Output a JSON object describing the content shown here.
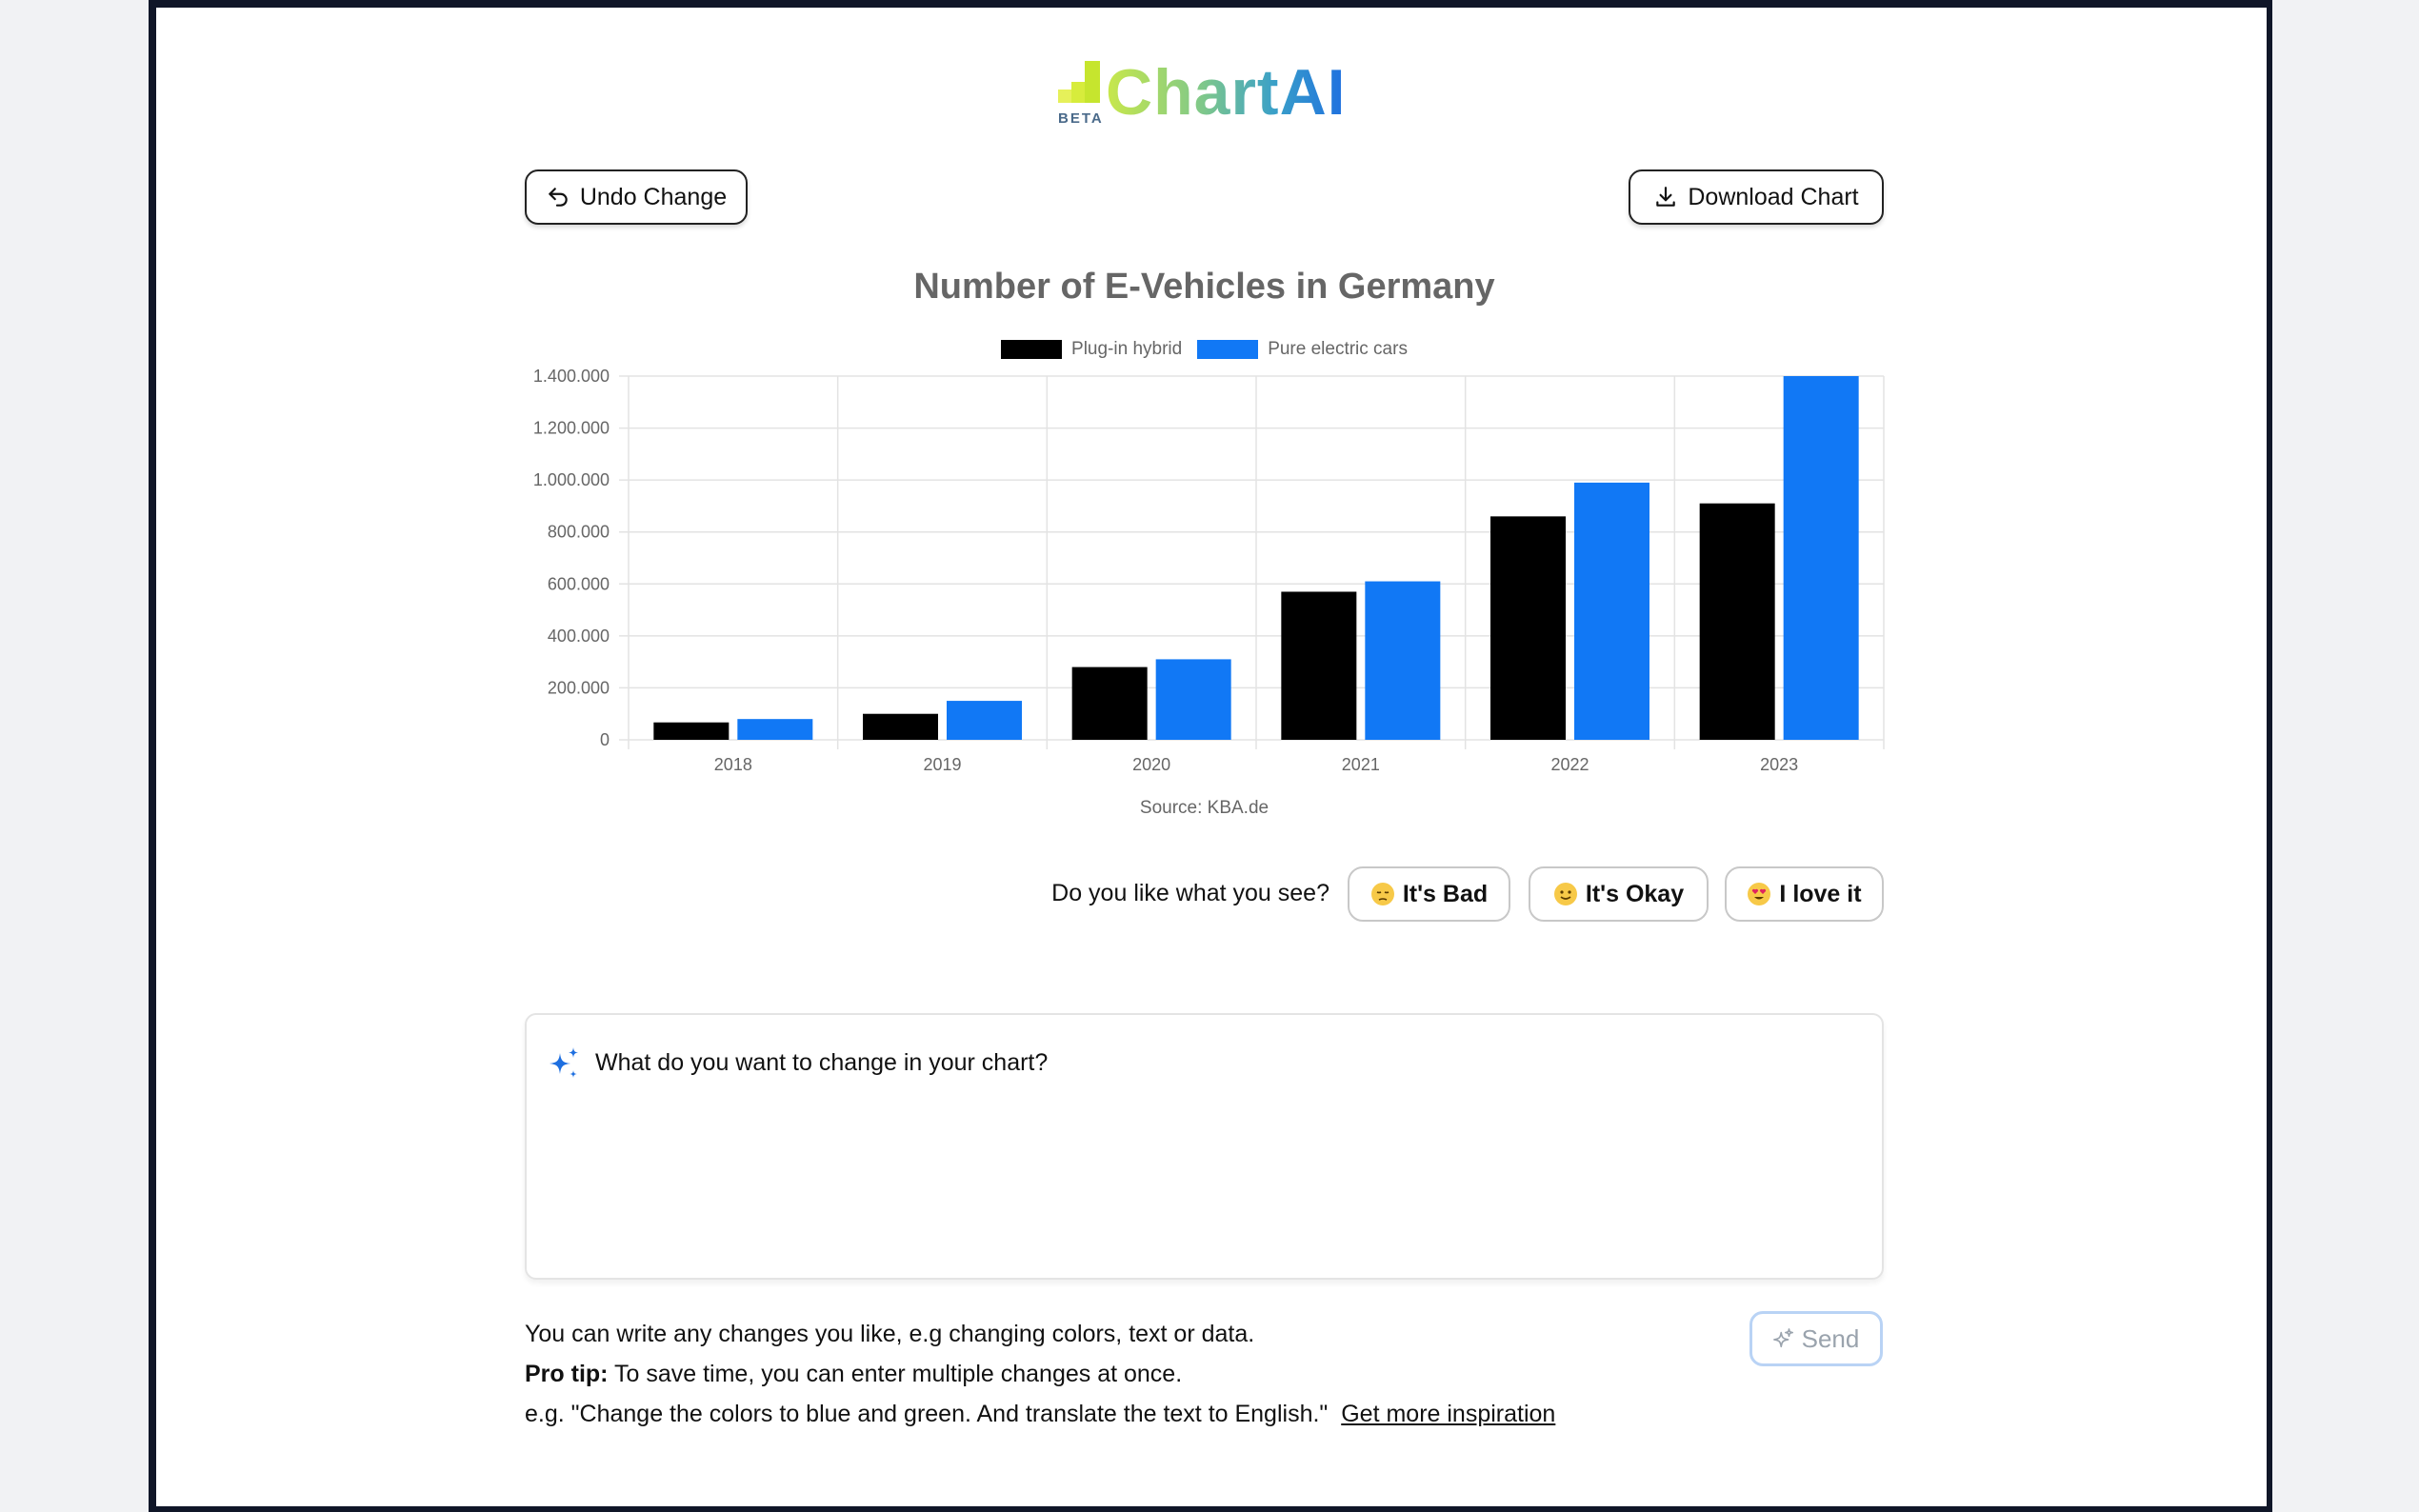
{
  "logo": {
    "badge": "BETA",
    "name": "ChartAI"
  },
  "toolbar": {
    "undo_label": "Undo Change",
    "download_label": "Download Chart"
  },
  "chart_data": {
    "type": "bar",
    "title": "Number of E-Vehicles in Germany",
    "categories": [
      "2018",
      "2019",
      "2020",
      "2021",
      "2022",
      "2023"
    ],
    "series": [
      {
        "name": "Plug-in hybrid",
        "color": "#000000",
        "values": [
          67000,
          100000,
          280000,
          570000,
          860000,
          910000
        ]
      },
      {
        "name": "Pure electric cars",
        "color": "#1178f5",
        "values": [
          80000,
          150000,
          310000,
          610000,
          990000,
          1400000
        ]
      }
    ],
    "ylim": [
      0,
      1400000
    ],
    "yticks": [
      "0",
      "200.000",
      "400.000",
      "600.000",
      "800.000",
      "1.000.000",
      "1.200.000",
      "1.400.000"
    ],
    "ytick_values": [
      0,
      200000,
      400000,
      600000,
      800000,
      1000000,
      1200000,
      1400000
    ],
    "grid": true,
    "legend_position": "top-center",
    "source": "Source: KBA.de"
  },
  "feedback": {
    "question": "Do you like what you see?",
    "bad": "It's Bad",
    "okay": "It's Okay",
    "love": "I love it"
  },
  "prompt": {
    "placeholder": "What do you want to change in your chart?"
  },
  "help": {
    "line1": "You can write any changes you like, e.g changing colors, text or data.",
    "pro_label": "Pro tip:",
    "line2": " To save time, you can enter multiple changes at once.",
    "line3": "e.g. \"Change the colors to blue and green. And translate the text to English.\"",
    "inspiration_link": "Get more inspiration"
  },
  "send": {
    "label": "Send"
  }
}
